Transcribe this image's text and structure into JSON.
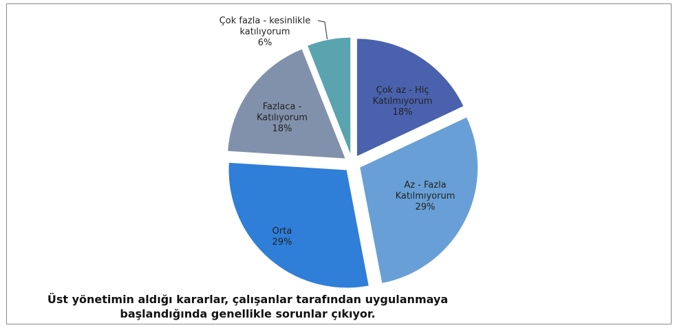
{
  "chart_data": {
    "type": "pie",
    "title": "Üst yönetimin aldığı kararlar, çalışanlar tarafından uygulanmaya başlandığında genellikle sorunlar çıkıyor.",
    "categories": [
      "Çok az - Hiç Katılmıyorum",
      "Az - Fazla Katılmıyorum",
      "Orta",
      "Fazlaca - Katılıyorum",
      "Çok fazla - kesinlikle katılıyorum"
    ],
    "values": [
      18,
      29,
      29,
      18,
      6
    ],
    "value_labels": [
      "18%",
      "29%",
      "29%",
      "18%",
      "6%"
    ],
    "colors": [
      "#4a62ad",
      "#689fd6",
      "#2f7ed8",
      "#8291ab",
      "#5aa4b0"
    ]
  }
}
